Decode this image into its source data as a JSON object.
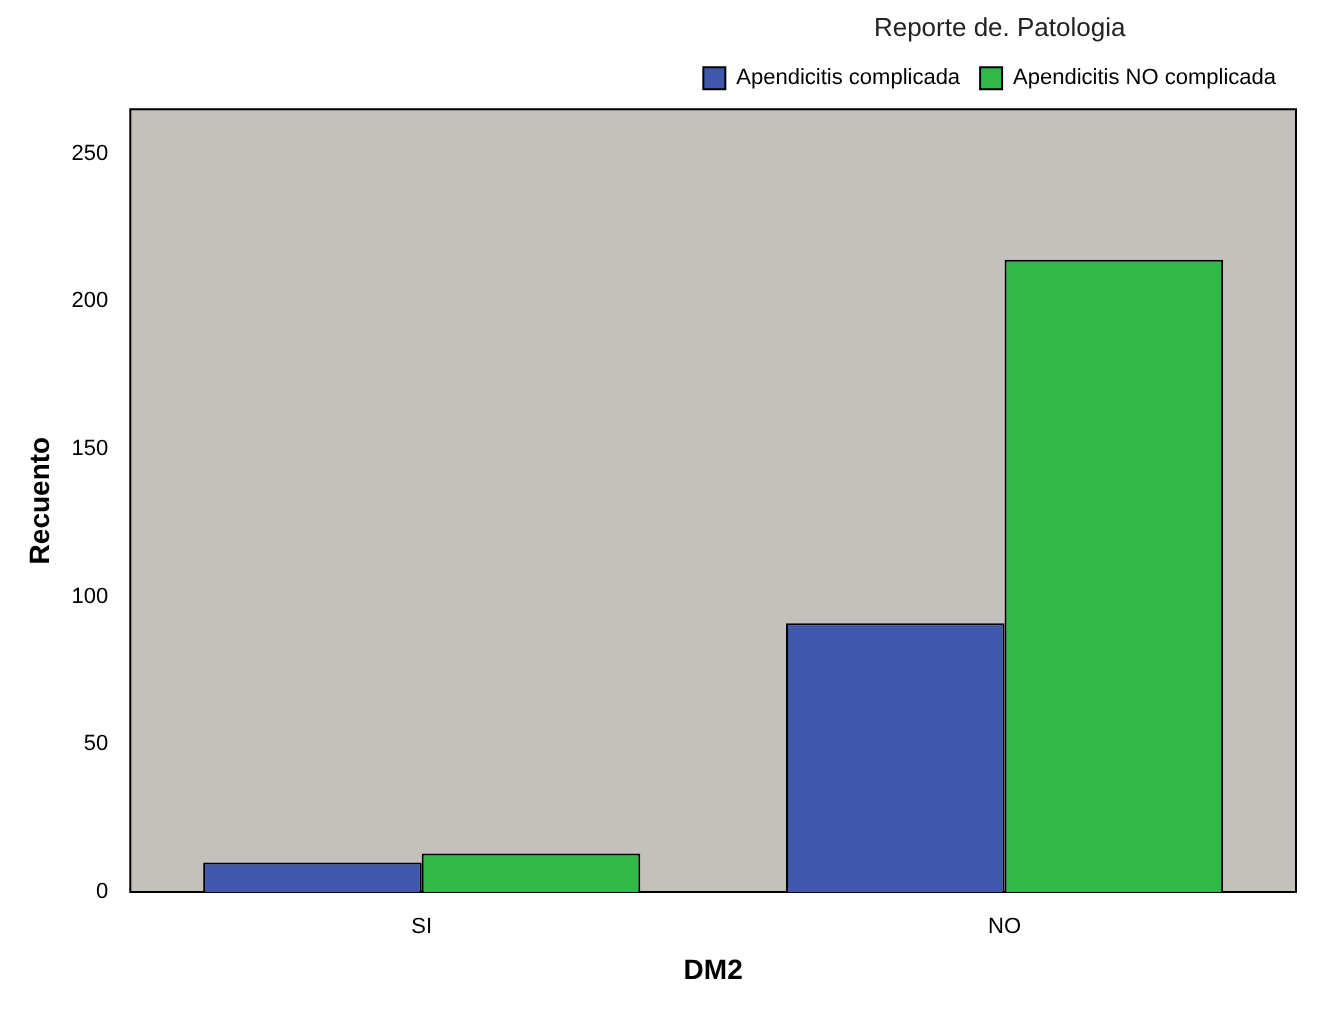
{
  "chart_data": {
    "type": "bar",
    "xlabel": "DM2",
    "ylabel": "Recuento",
    "legend_title": "Reporte de. Patologia",
    "categories": [
      "SI",
      "NO"
    ],
    "series": [
      {
        "name": "Apendicitis complicada",
        "color": "#3f57ac",
        "values": [
          10,
          91
        ]
      },
      {
        "name": "Apendicitis NO complicada",
        "color": "#31b847",
        "values": [
          13,
          214
        ]
      }
    ],
    "ylim": [
      0,
      265
    ],
    "yticks": [
      0,
      50,
      100,
      150,
      200,
      250
    ],
    "grid": false,
    "legend": "top right"
  }
}
